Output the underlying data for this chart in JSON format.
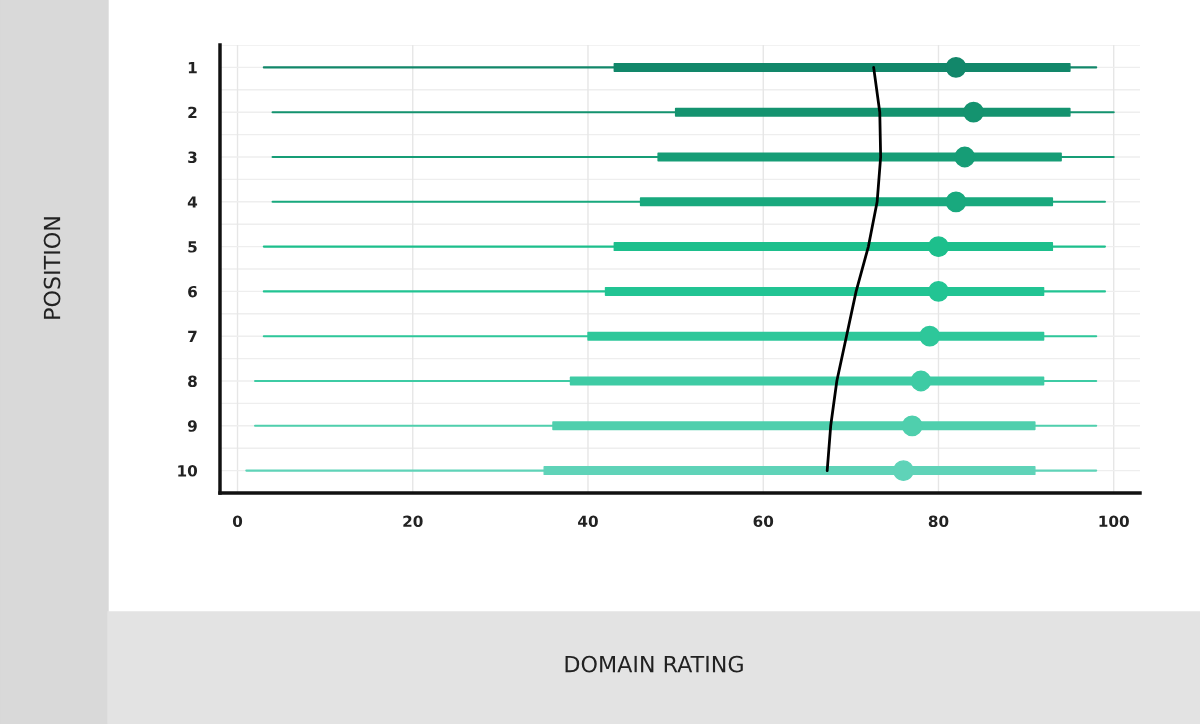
{
  "chart_data": {
    "type": "box",
    "orientation": "horizontal",
    "annotations": [
      "DOMAIN RATING",
      "POSITION"
    ],
    "categories": [
      "1",
      "2",
      "3",
      "4",
      "5",
      "6",
      "7",
      "8",
      "9",
      "10"
    ],
    "boxes": [
      {
        "low": 3,
        "q1": 43,
        "median": 82,
        "q3": 95,
        "high": 98
      },
      {
        "low": 4,
        "q1": 50,
        "median": 84,
        "q3": 95,
        "high": 100
      },
      {
        "low": 4,
        "q1": 48,
        "median": 83,
        "q3": 94,
        "high": 100
      },
      {
        "low": 4,
        "q1": 46,
        "median": 82,
        "q3": 93,
        "high": 99
      },
      {
        "low": 3,
        "q1": 43,
        "median": 80,
        "q3": 93,
        "high": 99
      },
      {
        "low": 3,
        "q1": 42,
        "median": 80,
        "q3": 92,
        "high": 99
      },
      {
        "low": 3,
        "q1": 40,
        "median": 79,
        "q3": 92,
        "high": 98
      },
      {
        "low": 2,
        "q1": 38,
        "median": 78,
        "q3": 92,
        "high": 98
      },
      {
        "low": 2,
        "q1": 36,
        "median": 77,
        "q3": 91,
        "high": 98
      },
      {
        "low": 1,
        "q1": 35,
        "median": 76,
        "q3": 91,
        "high": 98
      }
    ],
    "colors": [
      "#12876a",
      "#14936f",
      "#169d76",
      "#19a97e",
      "#1dbf8c",
      "#22c493",
      "#2ec79a",
      "#3ecba4",
      "#4fcfad",
      "#5fd3b8"
    ],
    "series": [
      {
        "type": "line",
        "color": "#000000",
        "values": [
          72.6,
          73.3,
          73.4,
          73,
          72,
          70.6,
          69.5,
          68.4,
          67.7,
          67.3
        ]
      }
    ],
    "xlim": [
      -2,
      103
    ],
    "xticks": [
      0,
      20,
      40,
      60,
      80,
      100
    ],
    "grid": true
  }
}
